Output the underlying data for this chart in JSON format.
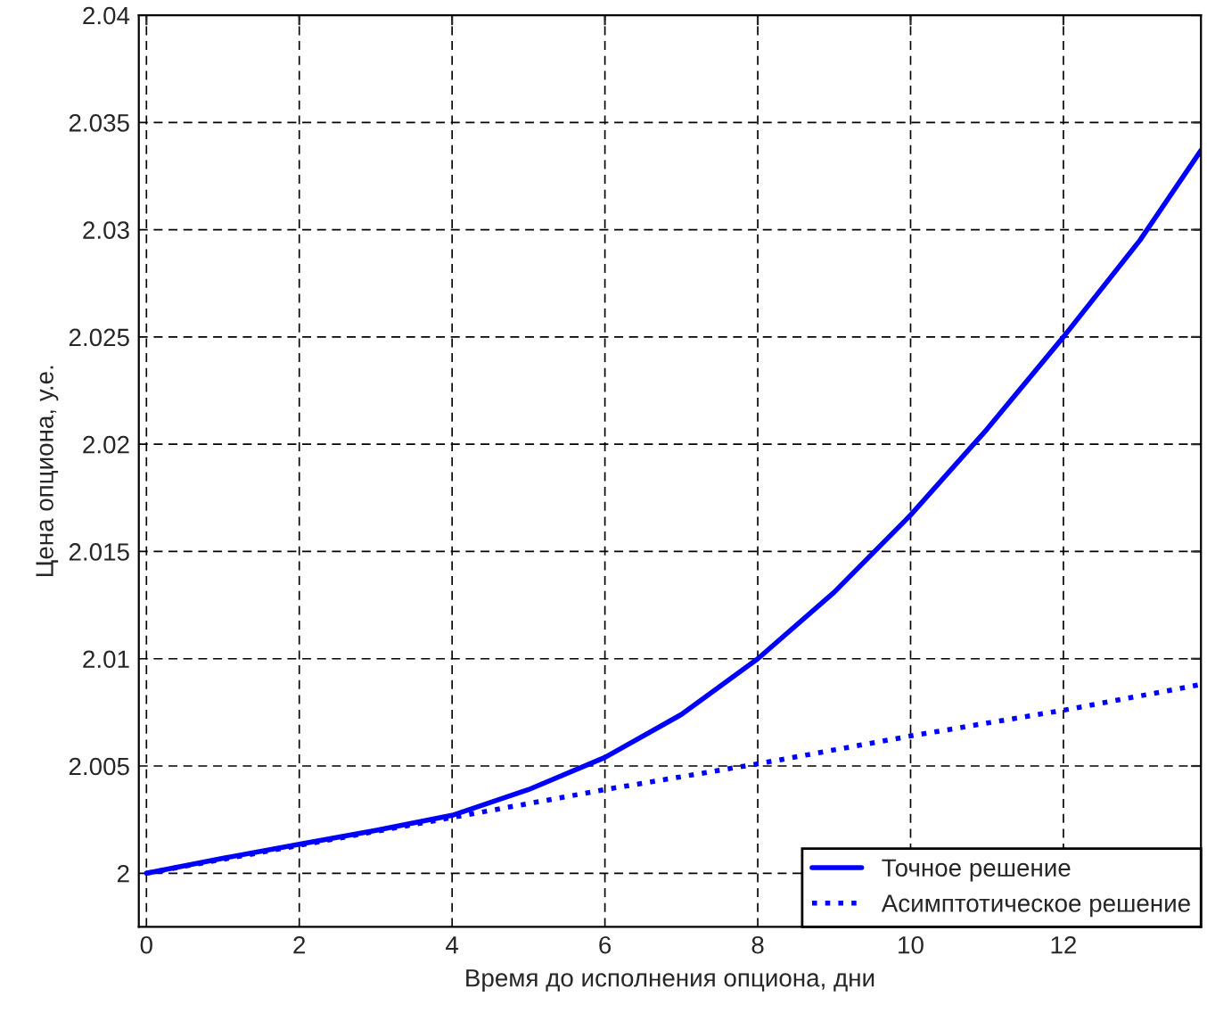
{
  "chart_data": {
    "type": "line",
    "xlabel": "Время до исполнения опциона, дни",
    "ylabel": "Цена опциона, у.е.",
    "xlim": [
      -0.1,
      13.8
    ],
    "xticks": [
      0,
      2,
      4,
      6,
      8,
      10,
      12
    ],
    "ylim": [
      1.9975,
      2.04
    ],
    "yticks": [
      2,
      2.005,
      2.01,
      2.015,
      2.02,
      2.025,
      2.03,
      2.035,
      2.04
    ],
    "grid": true,
    "legend": "bottom right",
    "series": [
      {
        "name": "Точное решение",
        "color": "#0000ff",
        "line_style": "solid",
        "x": [
          0,
          1,
          2,
          3,
          4,
          5,
          6,
          7,
          8,
          9,
          10,
          11,
          12,
          13,
          13.8
        ],
        "values": [
          2.0,
          2.0007,
          2.00135,
          2.002,
          2.0027,
          2.0039,
          2.0054,
          2.0074,
          2.01,
          2.0131,
          2.0167,
          2.0207,
          2.025,
          2.0295,
          2.0337
        ]
      },
      {
        "name": "Асимптотическое решение",
        "color": "#0000ff",
        "line_style": "dotted",
        "x": [
          0,
          2,
          4,
          6,
          8,
          10,
          12,
          13.8
        ],
        "values": [
          2.0,
          2.0013,
          2.0026,
          2.0039,
          2.0051,
          2.0064,
          2.0076,
          2.0088
        ]
      }
    ]
  }
}
